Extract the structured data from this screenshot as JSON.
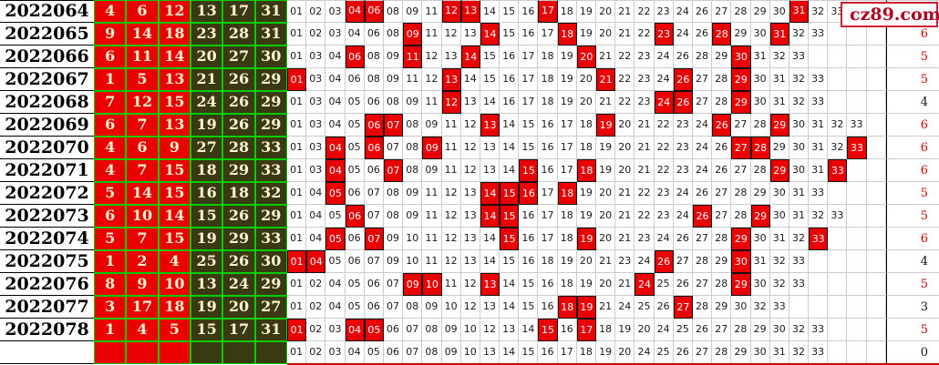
{
  "site_logo": {
    "text": "cz89.com",
    "text_color": "#b00020",
    "border_color": "#cc2233",
    "square_color": "#ffff44"
  },
  "colors": {
    "red_ball_bg": "#ea0000",
    "dark_ball_bg": "#3a3a12",
    "ball_border_green": "#00cc00",
    "hit_cell_bg": "#ea0000",
    "count_red": "#cc0000",
    "count_black": "#111111",
    "bottom_line_red": "#cc0000"
  },
  "rows": [
    {
      "period": "2022064",
      "balls": [
        "4",
        "6",
        "12",
        "13",
        "17",
        "31"
      ],
      "grid": [
        "01",
        "02",
        "03",
        "04",
        "06",
        "08",
        "09",
        "11",
        "12",
        "13",
        "14",
        "15",
        "16",
        "17",
        "18",
        "19",
        "20",
        "21",
        "22",
        "23",
        "24",
        "26",
        "27",
        "28",
        "29",
        "30",
        "31",
        "32",
        "33"
      ],
      "hits": [
        "04",
        "06",
        "12",
        "13",
        "17",
        "31"
      ],
      "count": "",
      "count_color": "red"
    },
    {
      "period": "2022065",
      "balls": [
        "9",
        "14",
        "18",
        "23",
        "28",
        "31"
      ],
      "grid": [
        "01",
        "02",
        "03",
        "04",
        "06",
        "08",
        "09",
        "11",
        "12",
        "13",
        "14",
        "15",
        "16",
        "17",
        "18",
        "19",
        "20",
        "21",
        "22",
        "23",
        "24",
        "26",
        "28",
        "29",
        "30",
        "31",
        "32",
        "33"
      ],
      "hits": [
        "09",
        "14",
        "18",
        "23",
        "28",
        "31"
      ],
      "count": "6",
      "count_color": "red"
    },
    {
      "period": "2022066",
      "balls": [
        "6",
        "11",
        "14",
        "20",
        "27",
        "30"
      ],
      "grid": [
        "01",
        "03",
        "04",
        "06",
        "08",
        "09",
        "11",
        "12",
        "13",
        "14",
        "15",
        "16",
        "17",
        "18",
        "19",
        "20",
        "21",
        "22",
        "23",
        "24",
        "26",
        "28",
        "29",
        "30",
        "31",
        "32",
        "33"
      ],
      "hits": [
        "06",
        "11",
        "14",
        "20",
        "30"
      ],
      "count": "5",
      "count_color": "red"
    },
    {
      "period": "2022067",
      "balls": [
        "1",
        "5",
        "13",
        "21",
        "26",
        "29"
      ],
      "grid": [
        "01",
        "03",
        "04",
        "06",
        "08",
        "09",
        "11",
        "12",
        "13",
        "14",
        "15",
        "16",
        "17",
        "18",
        "19",
        "20",
        "21",
        "22",
        "23",
        "24",
        "26",
        "27",
        "28",
        "29",
        "30",
        "31",
        "32",
        "33"
      ],
      "hits": [
        "01",
        "13",
        "21",
        "26",
        "29"
      ],
      "count": "5",
      "count_color": "red"
    },
    {
      "period": "2022068",
      "balls": [
        "7",
        "12",
        "15",
        "24",
        "26",
        "29"
      ],
      "grid": [
        "01",
        "03",
        "04",
        "05",
        "06",
        "08",
        "09",
        "11",
        "12",
        "13",
        "14",
        "16",
        "17",
        "18",
        "19",
        "20",
        "21",
        "22",
        "23",
        "24",
        "26",
        "27",
        "28",
        "29",
        "30",
        "31",
        "32",
        "33"
      ],
      "hits": [
        "12",
        "24",
        "26",
        "29"
      ],
      "count": "4",
      "count_color": "black"
    },
    {
      "period": "2022069",
      "balls": [
        "6",
        "7",
        "13",
        "19",
        "26",
        "29"
      ],
      "grid": [
        "01",
        "03",
        "04",
        "05",
        "06",
        "07",
        "08",
        "09",
        "11",
        "12",
        "13",
        "14",
        "15",
        "16",
        "17",
        "18",
        "19",
        "20",
        "21",
        "22",
        "23",
        "24",
        "26",
        "27",
        "28",
        "29",
        "30",
        "31",
        "32",
        "33"
      ],
      "hits": [
        "06",
        "07",
        "13",
        "19",
        "26",
        "29"
      ],
      "count": "6",
      "count_color": "red"
    },
    {
      "period": "2022070",
      "balls": [
        "4",
        "6",
        "9",
        "27",
        "28",
        "33"
      ],
      "grid": [
        "01",
        "03",
        "04",
        "05",
        "06",
        "07",
        "08",
        "09",
        "11",
        "12",
        "13",
        "14",
        "15",
        "16",
        "17",
        "18",
        "19",
        "20",
        "21",
        "22",
        "23",
        "24",
        "26",
        "27",
        "28",
        "29",
        "30",
        "31",
        "32",
        "33"
      ],
      "hits": [
        "04",
        "06",
        "09",
        "27",
        "28",
        "33"
      ],
      "count": "6",
      "count_color": "red"
    },
    {
      "period": "2022071",
      "balls": [
        "4",
        "7",
        "15",
        "18",
        "29",
        "33"
      ],
      "grid": [
        "01",
        "03",
        "04",
        "05",
        "06",
        "07",
        "08",
        "09",
        "11",
        "12",
        "13",
        "14",
        "15",
        "16",
        "17",
        "18",
        "19",
        "20",
        "21",
        "22",
        "23",
        "24",
        "26",
        "27",
        "28",
        "29",
        "30",
        "31",
        "33"
      ],
      "hits": [
        "04",
        "07",
        "15",
        "18",
        "29",
        "33"
      ],
      "count": "6",
      "count_color": "red"
    },
    {
      "period": "2022072",
      "balls": [
        "5",
        "14",
        "15",
        "16",
        "18",
        "32"
      ],
      "grid": [
        "01",
        "04",
        "05",
        "06",
        "07",
        "08",
        "09",
        "11",
        "12",
        "13",
        "14",
        "15",
        "16",
        "17",
        "18",
        "19",
        "20",
        "21",
        "22",
        "23",
        "24",
        "26",
        "27",
        "28",
        "29",
        "30",
        "31",
        "33"
      ],
      "hits": [
        "05",
        "14",
        "15",
        "16",
        "18"
      ],
      "count": "5",
      "count_color": "red"
    },
    {
      "period": "2022073",
      "balls": [
        "6",
        "10",
        "14",
        "15",
        "26",
        "29"
      ],
      "grid": [
        "01",
        "04",
        "05",
        "06",
        "07",
        "08",
        "09",
        "11",
        "12",
        "13",
        "14",
        "15",
        "16",
        "17",
        "18",
        "19",
        "20",
        "21",
        "22",
        "23",
        "24",
        "26",
        "27",
        "28",
        "29",
        "30",
        "31",
        "32",
        "33"
      ],
      "hits": [
        "06",
        "14",
        "15",
        "26",
        "29"
      ],
      "count": "5",
      "count_color": "red"
    },
    {
      "period": "2022074",
      "balls": [
        "5",
        "7",
        "15",
        "19",
        "29",
        "33"
      ],
      "grid": [
        "01",
        "04",
        "05",
        "06",
        "07",
        "09",
        "10",
        "11",
        "12",
        "13",
        "14",
        "15",
        "16",
        "17",
        "18",
        "19",
        "20",
        "21",
        "23",
        "24",
        "26",
        "27",
        "28",
        "29",
        "30",
        "31",
        "32",
        "33"
      ],
      "hits": [
        "05",
        "07",
        "15",
        "19",
        "29",
        "33"
      ],
      "count": "6",
      "count_color": "red"
    },
    {
      "period": "2022075",
      "balls": [
        "1",
        "2",
        "4",
        "25",
        "26",
        "30"
      ],
      "grid": [
        "01",
        "04",
        "05",
        "06",
        "07",
        "09",
        "10",
        "11",
        "12",
        "13",
        "14",
        "15",
        "16",
        "18",
        "19",
        "20",
        "21",
        "23",
        "24",
        "26",
        "27",
        "28",
        "29",
        "30",
        "31",
        "32",
        "33"
      ],
      "hits": [
        "01",
        "04",
        "26",
        "30"
      ],
      "count": "4",
      "count_color": "black"
    },
    {
      "period": "2022076",
      "balls": [
        "8",
        "9",
        "10",
        "13",
        "24",
        "29"
      ],
      "grid": [
        "01",
        "02",
        "04",
        "05",
        "06",
        "07",
        "09",
        "10",
        "11",
        "12",
        "13",
        "14",
        "15",
        "16",
        "18",
        "19",
        "20",
        "21",
        "24",
        "25",
        "26",
        "27",
        "28",
        "29",
        "30",
        "32",
        "33"
      ],
      "hits": [
        "09",
        "10",
        "13",
        "24",
        "29"
      ],
      "count": "5",
      "count_color": "red"
    },
    {
      "period": "2022077",
      "balls": [
        "3",
        "17",
        "18",
        "19",
        "20",
        "27"
      ],
      "grid": [
        "01",
        "02",
        "04",
        "05",
        "06",
        "07",
        "08",
        "09",
        "10",
        "12",
        "13",
        "14",
        "15",
        "16",
        "18",
        "19",
        "21",
        "24",
        "25",
        "26",
        "27",
        "28",
        "29",
        "30",
        "32",
        "33"
      ],
      "hits": [
        "18",
        "19",
        "27"
      ],
      "count": "3",
      "count_color": "black"
    },
    {
      "period": "2022078",
      "balls": [
        "1",
        "4",
        "5",
        "15",
        "17",
        "31"
      ],
      "grid": [
        "01",
        "02",
        "03",
        "04",
        "05",
        "06",
        "07",
        "08",
        "09",
        "10",
        "12",
        "13",
        "14",
        "15",
        "16",
        "17",
        "18",
        "19",
        "20",
        "24",
        "25",
        "26",
        "27",
        "28",
        "29",
        "30",
        "32",
        "33"
      ],
      "hits": [
        "01",
        "04",
        "05",
        "15",
        "17"
      ],
      "count": "5",
      "count_color": "red"
    },
    {
      "period": "",
      "balls": [
        "",
        "",
        "",
        "",
        "",
        ""
      ],
      "grid": [
        "01",
        "02",
        "03",
        "04",
        "05",
        "06",
        "07",
        "08",
        "09",
        "10",
        "13",
        "14",
        "15",
        "16",
        "17",
        "18",
        "19",
        "20",
        "24",
        "25",
        "26",
        "27",
        "28",
        "29",
        "30",
        "31",
        "32",
        "33"
      ],
      "hits": [],
      "count": "0",
      "count_color": "black"
    }
  ]
}
